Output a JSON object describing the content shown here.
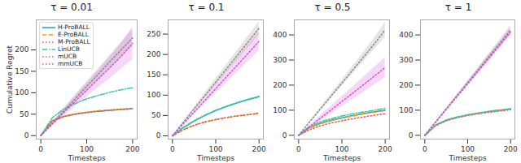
{
  "chart_data": [
    {
      "type": "line",
      "title": "τ = 0.01",
      "xlabel": "Timesteps",
      "ylabel": "Cumulative Regret",
      "legend": "upper left",
      "x": [
        0,
        25,
        50,
        75,
        100,
        125,
        150,
        175,
        200
      ],
      "xlim": [
        -10,
        210
      ],
      "xticks": [
        0,
        100,
        200
      ],
      "ylim": [
        -8,
        270
      ],
      "yticks": [
        0,
        50,
        100,
        150,
        200
      ],
      "series": [
        {
          "name": "H-ProBALL",
          "color": "#1f9bd7",
          "line_style": "solid",
          "values": [
            0,
            35,
            45,
            50,
            54,
            57,
            59,
            61,
            63
          ]
        },
        {
          "name": "E-ProBALL",
          "color": "#f0a500",
          "line_style": "dashed",
          "values": [
            0,
            35,
            45,
            51,
            55,
            58,
            60,
            62,
            64
          ]
        },
        {
          "name": "M-ProBALL",
          "color": "#e6556f",
          "line_style": "dotted",
          "values": [
            0,
            34,
            44,
            50,
            54,
            57,
            59,
            61,
            63
          ]
        },
        {
          "name": "LinUCB",
          "color": "#3cc8a0",
          "line_style": "dashdot",
          "values": [
            0,
            42,
            62,
            75,
            86,
            94,
            101,
            107,
            112
          ]
        },
        {
          "name": "mUCB",
          "color": "#888888",
          "line_style": "dotted",
          "values": [
            0,
            28,
            57,
            86,
            115,
            143,
            172,
            200,
            228
          ],
          "lower": [
            0,
            25,
            51,
            77,
            104,
            130,
            157,
            183,
            208
          ],
          "upper": [
            0,
            31,
            63,
            95,
            126,
            156,
            187,
            217,
            248
          ]
        },
        {
          "name": "mmUCB",
          "color": "#d44fd4",
          "line_style": "dotted",
          "values": [
            0,
            27,
            54,
            80,
            106,
            132,
            158,
            185,
            215
          ],
          "lower": [
            0,
            23,
            46,
            68,
            90,
            112,
            133,
            155,
            177
          ],
          "upper": [
            0,
            31,
            62,
            92,
            122,
            152,
            183,
            215,
            253
          ]
        }
      ]
    },
    {
      "type": "line",
      "title": "τ = 0.1",
      "xlabel": "Timesteps",
      "x": [
        0,
        25,
        50,
        75,
        100,
        125,
        150,
        175,
        200
      ],
      "xlim": [
        -10,
        210
      ],
      "xticks": [
        0,
        100,
        200
      ],
      "ylim": [
        -8,
        285
      ],
      "yticks": [
        0,
        50,
        100,
        150,
        200,
        250
      ],
      "series": [
        {
          "name": "H-ProBALL",
          "color": "#1f9bd7",
          "line_style": "solid",
          "values": [
            0,
            20,
            36,
            50,
            62,
            72,
            81,
            89,
            96
          ]
        },
        {
          "name": "E-ProBALL",
          "color": "#f0a500",
          "line_style": "dashed",
          "values": [
            0,
            15,
            26,
            34,
            40,
            45,
            49,
            52,
            55
          ]
        },
        {
          "name": "M-ProBALL",
          "color": "#e6556f",
          "line_style": "dotted",
          "values": [
            0,
            15,
            26,
            34,
            40,
            45,
            49,
            52,
            56
          ]
        },
        {
          "name": "LinUCB",
          "color": "#3cc8a0",
          "line_style": "dashdot",
          "values": [
            0,
            21,
            37,
            51,
            63,
            73,
            82,
            90,
            97
          ]
        },
        {
          "name": "mUCB",
          "color": "#888888",
          "line_style": "dotted",
          "values": [
            0,
            33,
            66,
            99,
            132,
            165,
            198,
            231,
            264
          ],
          "lower": [
            0,
            31,
            62,
            93,
            124,
            155,
            186,
            217,
            248
          ],
          "upper": [
            0,
            35,
            70,
            105,
            140,
            175,
            210,
            245,
            280
          ]
        },
        {
          "name": "mmUCB",
          "color": "#d44fd4",
          "line_style": "dotted",
          "values": [
            0,
            29,
            58,
            87,
            116,
            145,
            174,
            203,
            232
          ],
          "lower": [
            0,
            27,
            53,
            79,
            105,
            131,
            157,
            183,
            209
          ],
          "upper": [
            0,
            31,
            63,
            95,
            127,
            159,
            191,
            223,
            255
          ]
        }
      ]
    },
    {
      "type": "line",
      "title": "τ = 0.5",
      "xlabel": "Timesteps",
      "x": [
        0,
        25,
        50,
        75,
        100,
        125,
        150,
        175,
        200
      ],
      "xlim": [
        -10,
        210
      ],
      "xticks": [
        0,
        100,
        200
      ],
      "ylim": [
        -15,
        460
      ],
      "yticks": [
        0,
        100,
        200,
        300,
        400
      ],
      "series": [
        {
          "name": "H-ProBALL",
          "color": "#1f9bd7",
          "line_style": "solid",
          "values": [
            0,
            30,
            48,
            60,
            70,
            79,
            87,
            94,
            100
          ]
        },
        {
          "name": "E-ProBALL",
          "color": "#f0a500",
          "line_style": "dashed",
          "values": [
            0,
            28,
            46,
            58,
            68,
            77,
            85,
            92,
            98
          ]
        },
        {
          "name": "M-ProBALL",
          "color": "#e6556f",
          "line_style": "dotted",
          "values": [
            0,
            22,
            38,
            49,
            58,
            66,
            73,
            80,
            86
          ]
        },
        {
          "name": "LinUCB",
          "color": "#3cc8a0",
          "line_style": "dashdot",
          "values": [
            0,
            35,
            54,
            66,
            77,
            86,
            93,
            100,
            107
          ]
        },
        {
          "name": "mUCB",
          "color": "#888888",
          "line_style": "dotted",
          "values": [
            0,
            52,
            104,
            156,
            208,
            260,
            312,
            365,
            420
          ],
          "lower": [
            0,
            49,
            98,
            147,
            196,
            245,
            294,
            342,
            390
          ],
          "upper": [
            0,
            55,
            110,
            165,
            220,
            275,
            330,
            388,
            450
          ]
        },
        {
          "name": "mmUCB",
          "color": "#d44fd4",
          "line_style": "dotted",
          "values": [
            0,
            34,
            68,
            101,
            135,
            168,
            202,
            236,
            270
          ],
          "lower": [
            0,
            29,
            58,
            86,
            115,
            143,
            172,
            201,
            230
          ],
          "upper": [
            0,
            39,
            78,
            116,
            155,
            193,
            232,
            271,
            310
          ]
        }
      ]
    },
    {
      "type": "line",
      "title": "τ = 1",
      "xlabel": "Timesteps",
      "x": [
        0,
        25,
        50,
        75,
        100,
        125,
        150,
        175,
        200
      ],
      "xlim": [
        -10,
        210
      ],
      "xticks": [
        0,
        100,
        200
      ],
      "ylim": [
        -15,
        460
      ],
      "yticks": [
        0,
        100,
        200,
        300,
        400
      ],
      "series": [
        {
          "name": "H-ProBALL",
          "color": "#1f9bd7",
          "line_style": "solid",
          "values": [
            0,
            40,
            60,
            72,
            81,
            88,
            95,
            100,
            105
          ]
        },
        {
          "name": "E-ProBALL",
          "color": "#f0a500",
          "line_style": "dashed",
          "values": [
            0,
            39,
            59,
            71,
            80,
            87,
            94,
            99,
            104
          ]
        },
        {
          "name": "M-ProBALL",
          "color": "#e6556f",
          "line_style": "dotted",
          "values": [
            0,
            38,
            58,
            70,
            79,
            86,
            92,
            97,
            102
          ]
        },
        {
          "name": "LinUCB",
          "color": "#3cc8a0",
          "line_style": "dashdot",
          "values": [
            0,
            41,
            61,
            73,
            82,
            89,
            96,
            101,
            106
          ]
        },
        {
          "name": "mUCB",
          "color": "#888888",
          "line_style": "dotted",
          "values": [
            0,
            52,
            105,
            157,
            210,
            262,
            315,
            367,
            420
          ],
          "lower": [
            0,
            50,
            101,
            151,
            202,
            252,
            303,
            353,
            403
          ],
          "upper": [
            0,
            54,
            109,
            163,
            218,
            272,
            327,
            381,
            437
          ]
        },
        {
          "name": "mmUCB",
          "color": "#d44fd4",
          "line_style": "dotted",
          "values": [
            0,
            51,
            103,
            154,
            205,
            257,
            308,
            360,
            412
          ],
          "lower": [
            0,
            49,
            99,
            148,
            197,
            247,
            296,
            346,
            395
          ],
          "upper": [
            0,
            53,
            107,
            160,
            213,
            267,
            320,
            374,
            429
          ]
        }
      ]
    }
  ]
}
